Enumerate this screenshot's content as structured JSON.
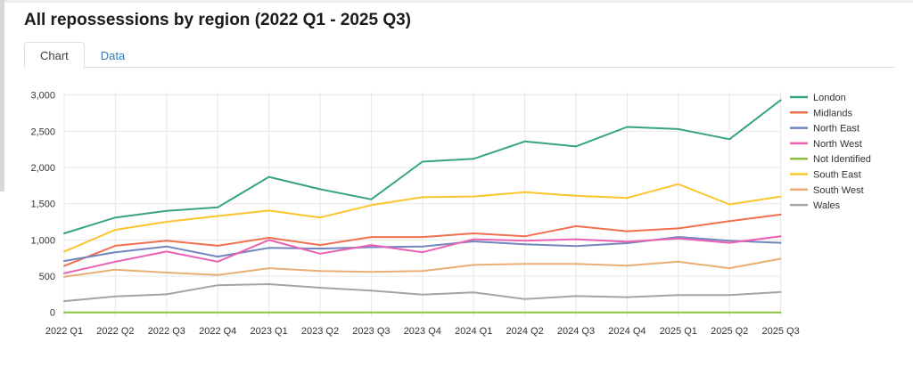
{
  "header": {
    "title": "All repossessions by region (2022 Q1 - 2025 Q3)"
  },
  "tabs": [
    {
      "label": "Chart",
      "active": true
    },
    {
      "label": "Data",
      "active": false
    }
  ],
  "ui_colors": {
    "tab_link_blue": "#337ab7",
    "tab_border": "#dddddd",
    "grid_line": "#e7e7e7",
    "axis_text": "#333333",
    "legend_text": "#333333"
  },
  "chart_data": {
    "type": "line",
    "title": "All repossessions by region (2022 Q1 - 2025 Q3)",
    "xlabel": "",
    "ylabel": "",
    "ylim": [
      0,
      3000
    ],
    "grid": true,
    "legend_position": "right",
    "categories": [
      "2022 Q1",
      "2022 Q2",
      "2022 Q3",
      "2022 Q4",
      "2023 Q1",
      "2023 Q2",
      "2023 Q3",
      "2023 Q4",
      "2024 Q1",
      "2024 Q2",
      "2024 Q3",
      "2024 Q4",
      "2025 Q1",
      "2025 Q2",
      "2025 Q3"
    ],
    "yticks": [
      0,
      500,
      1000,
      1500,
      2000,
      2500,
      3000
    ],
    "ytick_labels": [
      "0",
      "500",
      "1,000",
      "1,500",
      "2,000",
      "2,500",
      "3,000"
    ],
    "series": [
      {
        "name": "London",
        "color": "#38a287",
        "values": [
          1090,
          1310,
          1400,
          1450,
          1870,
          1700,
          1560,
          2080,
          2120,
          2360,
          2290,
          2560,
          2530,
          2390,
          2930
        ]
      },
      {
        "name": "Midlands",
        "color": "#f1704f",
        "values": [
          640,
          920,
          990,
          920,
          1030,
          930,
          1040,
          1040,
          1090,
          1050,
          1190,
          1120,
          1160,
          1260,
          1350
        ]
      },
      {
        "name": "North East",
        "color": "#7185bf",
        "values": [
          710,
          830,
          910,
          770,
          890,
          880,
          900,
          910,
          980,
          940,
          915,
          955,
          1040,
          990,
          960
        ]
      },
      {
        "name": "North West",
        "color": "#ec60b1",
        "values": [
          540,
          700,
          840,
          700,
          1000,
          810,
          930,
          830,
          1010,
          990,
          1010,
          975,
          1020,
          960,
          1050
        ]
      },
      {
        "name": "Not Identified",
        "color": "#8ac43f",
        "values": [
          0,
          0,
          0,
          0,
          0,
          0,
          0,
          0,
          0,
          0,
          0,
          0,
          0,
          0,
          0
        ]
      },
      {
        "name": "South East",
        "color": "#fcc52e",
        "values": [
          840,
          1140,
          1250,
          1330,
          1405,
          1310,
          1480,
          1590,
          1600,
          1660,
          1610,
          1580,
          1770,
          1490,
          1600
        ]
      },
      {
        "name": "South West",
        "color": "#e9ae74",
        "values": [
          490,
          590,
          550,
          515,
          610,
          570,
          560,
          570,
          655,
          670,
          670,
          645,
          700,
          610,
          740
        ]
      },
      {
        "name": "Wales",
        "color": "#a4a4a4",
        "values": [
          155,
          220,
          250,
          375,
          390,
          340,
          300,
          245,
          275,
          185,
          225,
          210,
          240,
          240,
          280
        ]
      }
    ]
  }
}
